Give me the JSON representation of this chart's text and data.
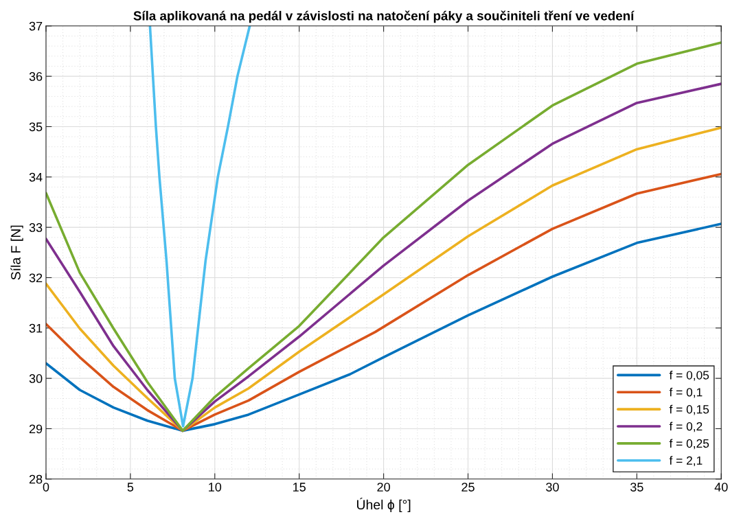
{
  "chart_data": {
    "type": "line",
    "title": "Síla aplikovaná na pedál v závislosti na natočení páky a součiniteli tření ve vedení",
    "xlabel": "Úhel ϕ [°]",
    "ylabel": "Síla F [N]",
    "xlim": [
      0,
      40
    ],
    "ylim": [
      28,
      37
    ],
    "xticks": [
      0,
      5,
      10,
      15,
      20,
      25,
      30,
      35,
      40
    ],
    "yticks": [
      28,
      29,
      30,
      31,
      32,
      33,
      34,
      35,
      36,
      37
    ],
    "grid": true,
    "legend": "bottom right",
    "line_style": "solid",
    "marker": "none",
    "series": [
      {
        "name": "f = 0,05",
        "color": "#0072bd",
        "x": [
          0,
          2,
          4,
          6,
          8.1,
          10,
          12,
          15,
          18,
          20,
          25,
          30,
          35,
          40
        ],
        "values": [
          30.3,
          29.77,
          29.42,
          29.16,
          28.96,
          29.09,
          29.28,
          29.68,
          30.08,
          30.42,
          31.25,
          32.02,
          32.69,
          33.07
        ]
      },
      {
        "name": "f = 0,1",
        "color": "#d95319",
        "x": [
          0,
          2,
          4,
          6,
          8.1,
          10,
          12,
          15,
          19.5,
          25,
          30,
          35,
          40
        ],
        "values": [
          31.08,
          30.42,
          29.83,
          29.37,
          28.96,
          29.28,
          29.56,
          30.13,
          30.92,
          32.05,
          32.97,
          33.67,
          34.06
        ]
      },
      {
        "name": "f = 0,15",
        "color": "#edb120",
        "x": [
          0,
          2,
          4,
          6,
          8.1,
          10,
          12,
          15,
          20,
          25,
          30,
          35,
          40
        ],
        "values": [
          31.88,
          30.99,
          30.25,
          29.61,
          28.96,
          29.42,
          29.8,
          30.53,
          31.67,
          32.82,
          33.83,
          34.55,
          34.98
        ]
      },
      {
        "name": "f = 0,2",
        "color": "#7e2f8e",
        "x": [
          0,
          2,
          4,
          6,
          8.1,
          10,
          12,
          15,
          20,
          25,
          30,
          35,
          40
        ],
        "values": [
          32.77,
          31.72,
          30.64,
          29.77,
          28.96,
          29.54,
          30.04,
          30.83,
          32.24,
          33.53,
          34.66,
          35.47,
          35.85
        ]
      },
      {
        "name": "f = 0,25",
        "color": "#77ac30",
        "x": [
          0,
          2,
          4,
          6,
          8.1,
          10,
          12,
          15,
          20,
          25,
          30,
          35,
          40
        ],
        "values": [
          33.68,
          32.1,
          30.99,
          29.93,
          28.96,
          29.63,
          30.2,
          31.04,
          32.8,
          34.24,
          35.42,
          36.25,
          36.67
        ]
      },
      {
        "name": "f = 2,1",
        "color": "#4dbeee",
        "x": [
          6.16,
          6.51,
          6.72,
          7.14,
          7.63,
          8.12,
          8.68,
          9.45,
          10.18,
          10.78,
          11.34,
          12.07
        ],
        "values": [
          37,
          35,
          34,
          32.33,
          30,
          29.05,
          30,
          32.33,
          34,
          35,
          36,
          37
        ]
      }
    ]
  }
}
